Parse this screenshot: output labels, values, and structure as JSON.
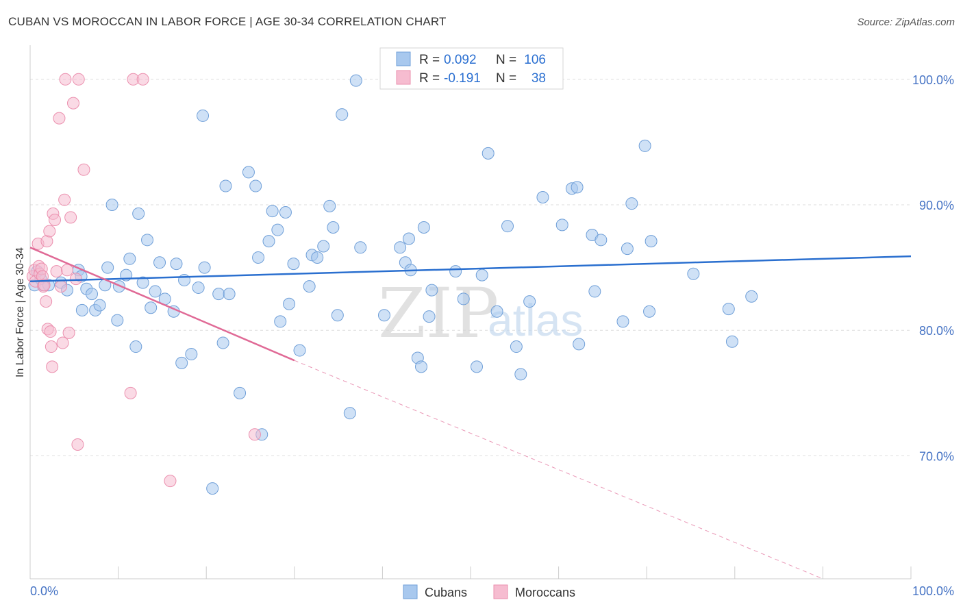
{
  "header": {
    "title": "CUBAN VS MOROCCAN IN LABOR FORCE | AGE 30-34 CORRELATION CHART",
    "source": "Source: ZipAtlas.com"
  },
  "watermark": {
    "zip": "ZIP",
    "atlas": "atlas"
  },
  "stats": {
    "cubans": {
      "r_label": "R =",
      "r_value": "0.092",
      "n_label": "N =",
      "n_value": "106"
    },
    "moroccans": {
      "r_label": "R =",
      "r_value": "-0.191",
      "n_label": "N =",
      "n_value": "38"
    }
  },
  "legend": {
    "cubans": "Cubans",
    "moroccans": "Moroccans"
  },
  "colors": {
    "cubans_fill": "#a8c8ee",
    "cubans_stroke": "#6f9fd8",
    "cubans_line": "#2a6fcf",
    "moroccans_fill": "#f6bcd0",
    "moroccans_stroke": "#eb8fae",
    "moroccans_line": "#e06a96",
    "tick_label": "#4472c4",
    "grid": "#dddddd"
  },
  "chart_data": {
    "type": "scatter",
    "title": "CUBAN VS MOROCCAN IN LABOR FORCE | AGE 30-34 CORRELATION CHART",
    "xlabel": "",
    "ylabel": "In Labor Force | Age 30-34",
    "xlim": [
      0,
      100
    ],
    "ylim": [
      60.2,
      102.5
    ],
    "x_tick_labels": [
      "0.0%",
      "100.0%"
    ],
    "y_ticks": [
      {
        "value": 70,
        "label": "70.0%"
      },
      {
        "value": 80,
        "label": "80.0%"
      },
      {
        "value": 90,
        "label": "90.0%"
      },
      {
        "value": 100,
        "label": "100.0%"
      }
    ],
    "grid": true,
    "series": [
      {
        "name": "Cubans",
        "trend": {
          "x": [
            0,
            100
          ],
          "y": [
            83.9,
            85.9
          ]
        },
        "points": [
          [
            0.5,
            83.6
          ],
          [
            0.8,
            84.7
          ],
          [
            1.2,
            84.1
          ],
          [
            1.5,
            83.6
          ],
          [
            2.1,
            83.6
          ],
          [
            3.5,
            83.8
          ],
          [
            4.2,
            83.2
          ],
          [
            5.5,
            84.8
          ],
          [
            5.8,
            84.3
          ],
          [
            5.9,
            81.6
          ],
          [
            6.4,
            83.3
          ],
          [
            7.0,
            82.9
          ],
          [
            7.4,
            81.6
          ],
          [
            7.9,
            82.0
          ],
          [
            8.5,
            83.6
          ],
          [
            8.8,
            85.0
          ],
          [
            9.3,
            90.0
          ],
          [
            9.9,
            80.8
          ],
          [
            10.1,
            83.5
          ],
          [
            10.9,
            84.4
          ],
          [
            11.3,
            85.7
          ],
          [
            12.0,
            78.7
          ],
          [
            12.3,
            89.3
          ],
          [
            12.8,
            83.8
          ],
          [
            13.3,
            87.2
          ],
          [
            13.7,
            81.8
          ],
          [
            14.2,
            83.1
          ],
          [
            14.7,
            85.4
          ],
          [
            15.3,
            82.5
          ],
          [
            16.3,
            81.5
          ],
          [
            16.6,
            85.3
          ],
          [
            17.2,
            77.4
          ],
          [
            17.5,
            84.0
          ],
          [
            18.3,
            78.1
          ],
          [
            19.1,
            83.4
          ],
          [
            19.6,
            97.1
          ],
          [
            19.8,
            85.0
          ],
          [
            20.7,
            67.4
          ],
          [
            21.4,
            82.9
          ],
          [
            21.9,
            79.0
          ],
          [
            22.2,
            91.5
          ],
          [
            22.6,
            82.9
          ],
          [
            23.8,
            75.0
          ],
          [
            24.8,
            92.6
          ],
          [
            25.6,
            91.5
          ],
          [
            25.9,
            85.8
          ],
          [
            26.3,
            71.7
          ],
          [
            27.1,
            87.1
          ],
          [
            27.5,
            89.5
          ],
          [
            28.1,
            88.0
          ],
          [
            28.4,
            80.7
          ],
          [
            29.0,
            89.4
          ],
          [
            29.4,
            82.1
          ],
          [
            29.9,
            85.3
          ],
          [
            30.6,
            78.4
          ],
          [
            31.7,
            83.5
          ],
          [
            32.0,
            86.0
          ],
          [
            32.6,
            85.8
          ],
          [
            33.3,
            86.7
          ],
          [
            34.0,
            89.9
          ],
          [
            34.4,
            88.2
          ],
          [
            34.9,
            81.2
          ],
          [
            35.4,
            97.2
          ],
          [
            36.3,
            73.4
          ],
          [
            37.0,
            99.9
          ],
          [
            37.5,
            86.6
          ],
          [
            40.2,
            81.2
          ],
          [
            42.0,
            86.6
          ],
          [
            42.6,
            85.4
          ],
          [
            43.0,
            87.3
          ],
          [
            43.2,
            84.8
          ],
          [
            44.0,
            77.8
          ],
          [
            44.4,
            77.1
          ],
          [
            44.7,
            88.2
          ],
          [
            45.3,
            81.1
          ],
          [
            45.6,
            83.2
          ],
          [
            48.3,
            84.7
          ],
          [
            49.2,
            82.5
          ],
          [
            50.7,
            77.1
          ],
          [
            51.3,
            84.4
          ],
          [
            52.0,
            94.1
          ],
          [
            53.0,
            81.5
          ],
          [
            54.2,
            88.3
          ],
          [
            55.2,
            78.7
          ],
          [
            55.7,
            76.5
          ],
          [
            56.7,
            82.3
          ],
          [
            58.2,
            90.6
          ],
          [
            60.4,
            88.4
          ],
          [
            61.5,
            91.3
          ],
          [
            62.1,
            91.4
          ],
          [
            62.3,
            78.9
          ],
          [
            63.8,
            87.6
          ],
          [
            64.1,
            83.1
          ],
          [
            64.8,
            87.2
          ],
          [
            67.3,
            80.7
          ],
          [
            67.8,
            86.5
          ],
          [
            68.3,
            90.1
          ],
          [
            69.8,
            94.7
          ],
          [
            70.3,
            81.5
          ],
          [
            70.5,
            87.1
          ],
          [
            75.3,
            84.5
          ],
          [
            79.3,
            81.7
          ],
          [
            79.7,
            79.1
          ],
          [
            81.9,
            82.7
          ]
        ]
      },
      {
        "name": "Moroccans",
        "trend": {
          "x": [
            0,
            30
          ],
          "y": [
            86.6,
            77.6
          ]
        },
        "trend_extended": {
          "x": [
            30,
            90
          ],
          "y": [
            77.6,
            60.2
          ]
        },
        "points": [
          [
            0.3,
            84.3
          ],
          [
            0.5,
            84.8
          ],
          [
            0.6,
            83.9
          ],
          [
            0.9,
            86.9
          ],
          [
            1.0,
            85.1
          ],
          [
            1.1,
            84.5
          ],
          [
            1.3,
            84.9
          ],
          [
            1.4,
            84.3
          ],
          [
            1.5,
            83.5
          ],
          [
            1.6,
            83.6
          ],
          [
            1.8,
            82.3
          ],
          [
            1.9,
            87.1
          ],
          [
            2.0,
            80.1
          ],
          [
            2.2,
            87.9
          ],
          [
            2.3,
            79.9
          ],
          [
            2.4,
            78.7
          ],
          [
            2.5,
            77.1
          ],
          [
            2.6,
            89.3
          ],
          [
            2.8,
            88.8
          ],
          [
            3.0,
            84.7
          ],
          [
            3.3,
            96.9
          ],
          [
            3.5,
            83.5
          ],
          [
            3.7,
            79.0
          ],
          [
            3.9,
            90.4
          ],
          [
            4.0,
            100.0
          ],
          [
            4.2,
            84.8
          ],
          [
            4.4,
            79.8
          ],
          [
            4.6,
            89.0
          ],
          [
            4.9,
            98.1
          ],
          [
            5.2,
            84.1
          ],
          [
            5.4,
            70.9
          ],
          [
            5.5,
            100.0
          ],
          [
            6.1,
            92.8
          ],
          [
            11.4,
            75.0
          ],
          [
            11.7,
            100.0
          ],
          [
            12.8,
            100.0
          ],
          [
            15.9,
            68.0
          ],
          [
            25.5,
            71.7
          ]
        ]
      }
    ]
  }
}
